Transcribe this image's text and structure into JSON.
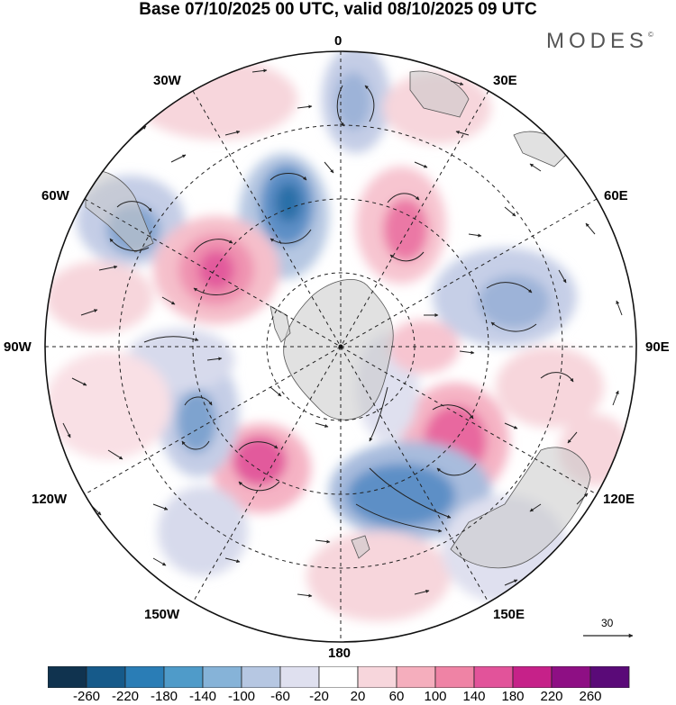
{
  "title": "Base 07/10/2025 00 UTC, valid 08/10/2025 09 UTC",
  "brand": {
    "name": "MODES",
    "mark": "©"
  },
  "projection": "south-polar-stereographic",
  "meridian_labels": {
    "m0": "0",
    "m30e": "30E",
    "m60e": "60E",
    "m90e": "90E",
    "m120e": "120E",
    "m150e": "150E",
    "m180": "180",
    "m150w": "150W",
    "m120w": "120W",
    "m90w": "90W",
    "m60w": "60W",
    "m30w": "30W"
  },
  "colorbar": {
    "ticks": [
      "-260",
      "-220",
      "-180",
      "-140",
      "-100",
      "-60",
      "-20",
      "20",
      "60",
      "100",
      "140",
      "180",
      "220",
      "260"
    ],
    "colors": [
      "#10334f",
      "#165a8a",
      "#2a7db6",
      "#4f9bc9",
      "#86b3d8",
      "#b6c7e2",
      "#dfe0ef",
      "#ffffff",
      "#f7d6dc",
      "#f5aebd",
      "#ef83a5",
      "#e2539a",
      "#c62189",
      "#8e0f84",
      "#5a0a78"
    ]
  },
  "vector_reference": {
    "value": "30"
  }
}
